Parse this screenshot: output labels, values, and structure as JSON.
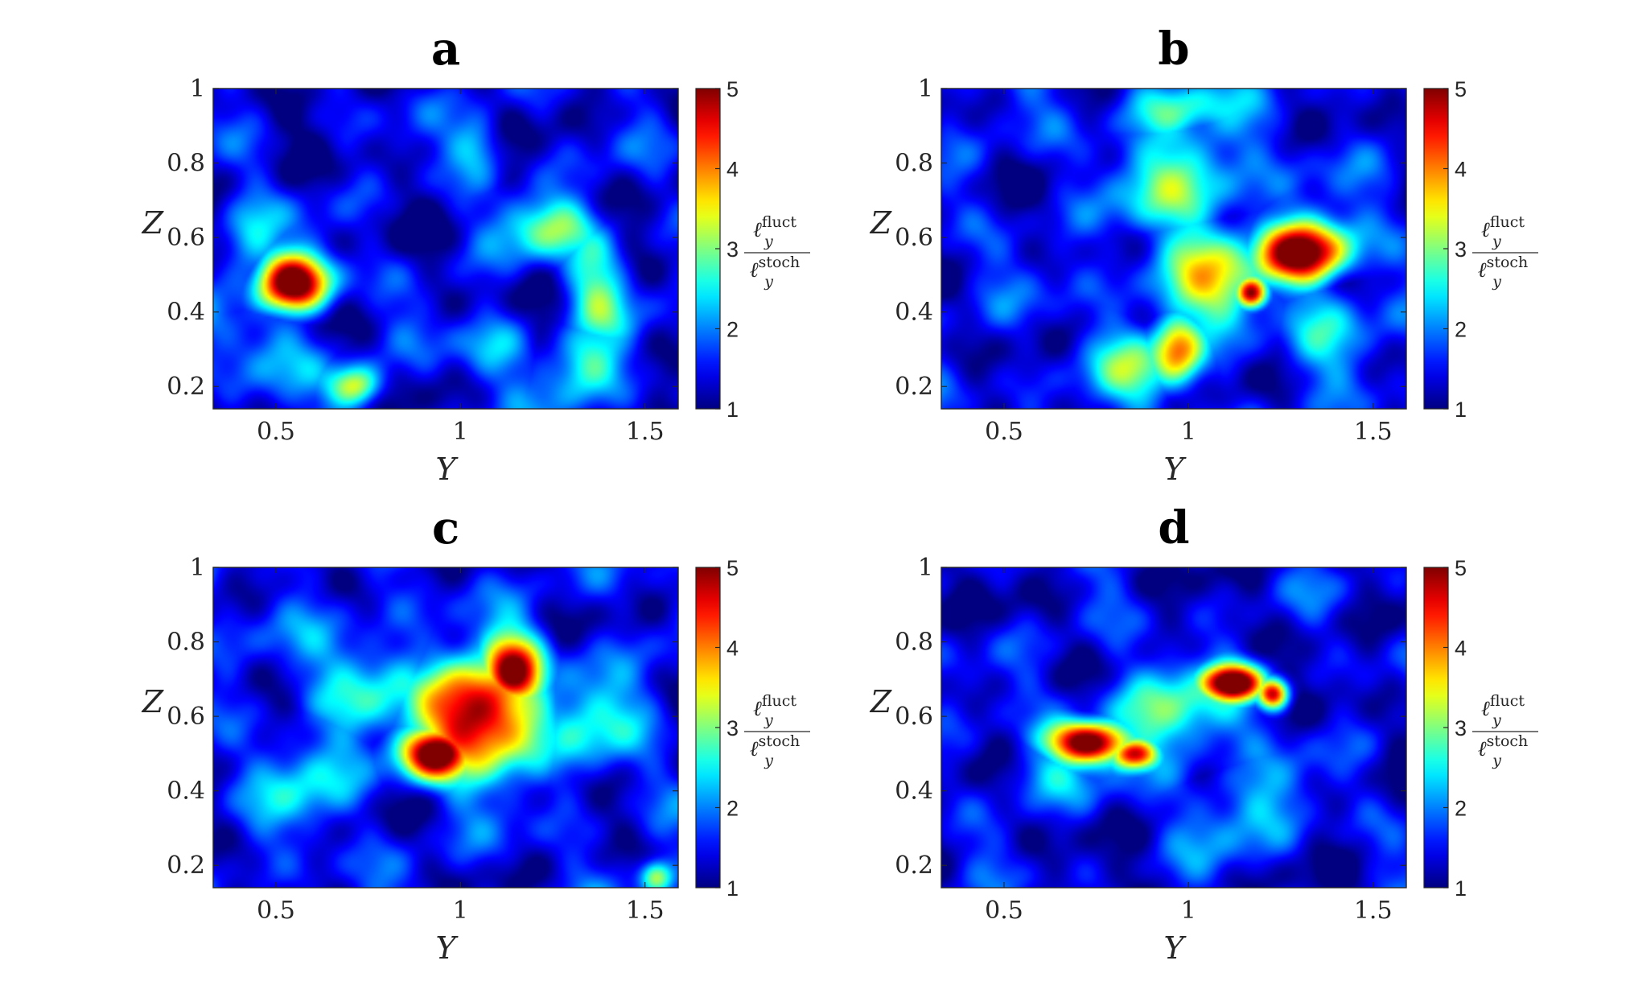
{
  "colormap": "jet",
  "chart_data": [
    {
      "type": "heatmap",
      "title": "a",
      "xlabel": "Y",
      "ylabel": "Z",
      "xlim": [
        0.33,
        1.59
      ],
      "ylim": [
        0.14,
        1.0
      ],
      "xticks": [
        "0.5",
        "1",
        "1.5"
      ],
      "yticks": [
        "0.2",
        "0.4",
        "0.6",
        "0.8",
        "1"
      ],
      "clim": [
        1,
        5
      ],
      "colorbar_ticks": [
        "1",
        "2",
        "3",
        "4",
        "5"
      ],
      "colorbar_label": {
        "num": "ℓ",
        "num_sub": "y",
        "num_sup": "fluct",
        "den": "ℓ",
        "den_sub": "y",
        "den_sup": "stoch"
      },
      "background_level": 1.35,
      "hotspots": [
        {
          "y": 0.55,
          "z": 0.48,
          "value": 5.0,
          "spread_y": 0.07,
          "spread_z": 0.055
        },
        {
          "y": 0.42,
          "z": 0.58,
          "value": 2.3,
          "spread_y": 0.06,
          "spread_z": 0.1
        },
        {
          "y": 0.72,
          "z": 0.2,
          "value": 3.2,
          "spread_y": 0.05,
          "spread_z": 0.04
        },
        {
          "y": 0.5,
          "z": 0.3,
          "value": 2.3,
          "spread_y": 0.08,
          "spread_z": 0.08
        },
        {
          "y": 1.25,
          "z": 0.63,
          "value": 2.7,
          "spread_y": 0.1,
          "spread_z": 0.06
        },
        {
          "y": 1.37,
          "z": 0.48,
          "value": 2.6,
          "spread_y": 0.06,
          "spread_z": 0.12
        },
        {
          "y": 1.34,
          "z": 0.25,
          "value": 2.8,
          "spread_y": 0.07,
          "spread_z": 0.07
        },
        {
          "y": 1.05,
          "z": 0.85,
          "value": 2.4,
          "spread_y": 0.05,
          "spread_z": 0.06
        },
        {
          "y": 1.08,
          "z": 0.3,
          "value": 2.2,
          "spread_y": 0.07,
          "spread_z": 0.07
        }
      ]
    },
    {
      "type": "heatmap",
      "title": "b",
      "xlabel": "Y",
      "ylabel": "Z",
      "xlim": [
        0.33,
        1.59
      ],
      "ylim": [
        0.14,
        1.0
      ],
      "xticks": [
        "0.5",
        "1",
        "1.5"
      ],
      "yticks": [
        "0.2",
        "0.4",
        "0.6",
        "0.8",
        "1"
      ],
      "clim": [
        1,
        5
      ],
      "colorbar_ticks": [
        "1",
        "2",
        "3",
        "4",
        "5"
      ],
      "colorbar_label": {
        "num": "ℓ",
        "num_sub": "y",
        "num_sup": "fluct",
        "den": "ℓ",
        "den_sub": "y",
        "den_sup": "stoch"
      },
      "background_level": 1.45,
      "hotspots": [
        {
          "y": 1.31,
          "z": 0.56,
          "value": 5.0,
          "spread_y": 0.09,
          "spread_z": 0.06
        },
        {
          "y": 1.17,
          "z": 0.45,
          "value": 4.6,
          "spread_y": 0.03,
          "spread_z": 0.03
        },
        {
          "y": 0.97,
          "z": 0.3,
          "value": 3.8,
          "spread_y": 0.05,
          "spread_z": 0.07
        },
        {
          "y": 1.05,
          "z": 0.5,
          "value": 3.0,
          "spread_y": 0.12,
          "spread_z": 0.12
        },
        {
          "y": 1.0,
          "z": 0.75,
          "value": 2.7,
          "spread_y": 0.12,
          "spread_z": 0.12
        },
        {
          "y": 0.95,
          "z": 0.95,
          "value": 2.6,
          "spread_y": 0.1,
          "spread_z": 0.06
        },
        {
          "y": 0.85,
          "z": 0.25,
          "value": 2.4,
          "spread_y": 0.1,
          "spread_z": 0.08
        },
        {
          "y": 1.38,
          "z": 0.4,
          "value": 2.3,
          "spread_y": 0.08,
          "spread_z": 0.1
        }
      ]
    },
    {
      "type": "heatmap",
      "title": "c",
      "xlabel": "Y",
      "ylabel": "Z",
      "xlim": [
        0.33,
        1.59
      ],
      "ylim": [
        0.14,
        1.0
      ],
      "xticks": [
        "0.5",
        "1",
        "1.5"
      ],
      "yticks": [
        "0.2",
        "0.4",
        "0.6",
        "0.8",
        "1"
      ],
      "clim": [
        1,
        5
      ],
      "colorbar_ticks": [
        "1",
        "2",
        "3",
        "4",
        "5"
      ],
      "colorbar_label": {
        "num": "ℓ",
        "num_sub": "y",
        "num_sup": "fluct",
        "den": "ℓ",
        "den_sub": "y",
        "den_sup": "stoch"
      },
      "background_level": 1.45,
      "hotspots": [
        {
          "y": 1.05,
          "z": 0.6,
          "value": 5.0,
          "spread_y": 0.11,
          "spread_z": 0.1
        },
        {
          "y": 0.93,
          "z": 0.5,
          "value": 5.0,
          "spread_y": 0.07,
          "spread_z": 0.05
        },
        {
          "y": 1.14,
          "z": 0.72,
          "value": 4.6,
          "spread_y": 0.06,
          "spread_z": 0.07
        },
        {
          "y": 0.75,
          "z": 0.7,
          "value": 2.4,
          "spread_y": 0.12,
          "spread_z": 0.1
        },
        {
          "y": 0.6,
          "z": 0.45,
          "value": 2.3,
          "spread_y": 0.1,
          "spread_z": 0.1
        },
        {
          "y": 1.35,
          "z": 0.6,
          "value": 2.3,
          "spread_y": 0.1,
          "spread_z": 0.12
        },
        {
          "y": 1.53,
          "z": 0.17,
          "value": 3.0,
          "spread_y": 0.03,
          "spread_z": 0.03
        }
      ]
    },
    {
      "type": "heatmap",
      "title": "d",
      "xlabel": "Y",
      "ylabel": "Z",
      "xlim": [
        0.33,
        1.59
      ],
      "ylim": [
        0.14,
        1.0
      ],
      "xticks": [
        "0.5",
        "1",
        "1.5"
      ],
      "yticks": [
        "0.2",
        "0.4",
        "0.6",
        "0.8",
        "1"
      ],
      "clim": [
        1,
        5
      ],
      "colorbar_ticks": [
        "1",
        "2",
        "3",
        "4",
        "5"
      ],
      "colorbar_label": {
        "num": "ℓ",
        "num_sub": "y",
        "num_sup": "fluct",
        "den": "ℓ",
        "den_sub": "y",
        "den_sup": "stoch"
      },
      "background_level": 1.35,
      "hotspots": [
        {
          "y": 0.73,
          "z": 0.53,
          "value": 5.0,
          "spread_y": 0.08,
          "spread_z": 0.04
        },
        {
          "y": 0.85,
          "z": 0.5,
          "value": 4.2,
          "spread_y": 0.05,
          "spread_z": 0.03
        },
        {
          "y": 1.12,
          "z": 0.69,
          "value": 4.9,
          "spread_y": 0.06,
          "spread_z": 0.035
        },
        {
          "y": 1.23,
          "z": 0.66,
          "value": 4.5,
          "spread_y": 0.03,
          "spread_z": 0.03
        },
        {
          "y": 0.95,
          "z": 0.6,
          "value": 2.6,
          "spread_y": 0.15,
          "spread_z": 0.1
        },
        {
          "y": 1.15,
          "z": 0.35,
          "value": 2.2,
          "spread_y": 0.12,
          "spread_z": 0.08
        },
        {
          "y": 0.6,
          "z": 0.45,
          "value": 2.2,
          "spread_y": 0.08,
          "spread_z": 0.06
        }
      ]
    }
  ]
}
